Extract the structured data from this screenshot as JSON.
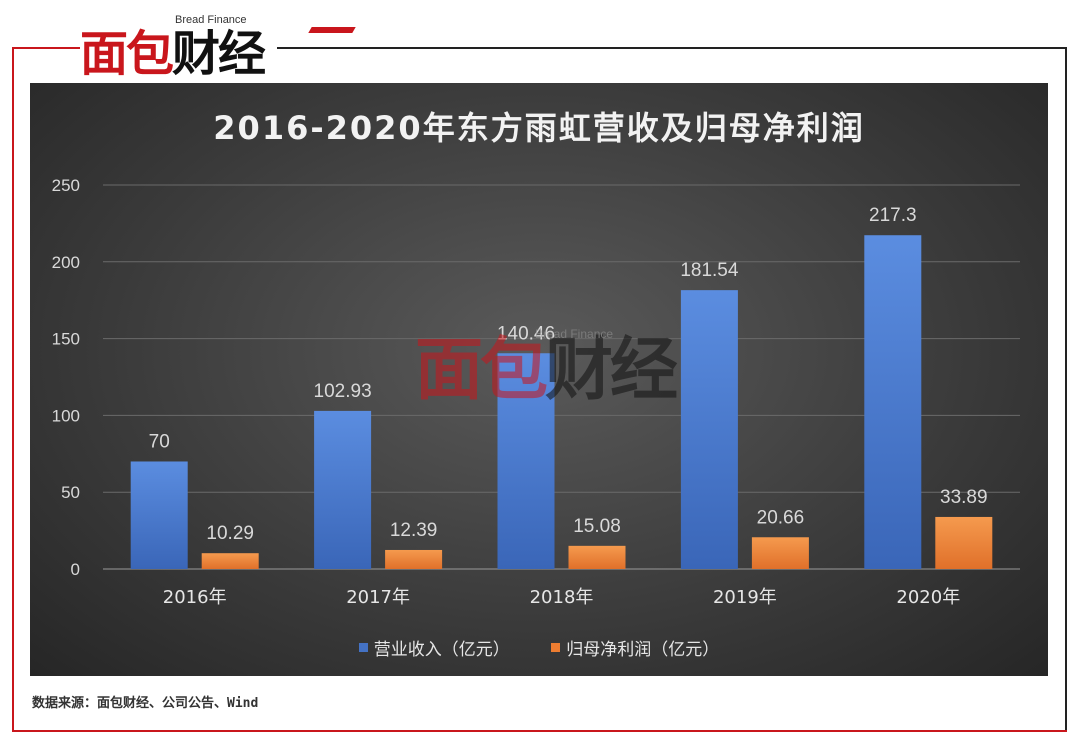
{
  "logo": {
    "en": "Bread Finance",
    "cn_red": "面包",
    "cn_black": "财经"
  },
  "source": "数据来源：面包财经、公司公告、Wind",
  "colors": {
    "revenue": "#4472c4",
    "profit": "#ed7d31",
    "panel": "#3a3a3a",
    "accent": "#c9161c"
  },
  "chart_data": {
    "type": "bar",
    "title": "2016-2020年东方雨虹营收及归母净利润",
    "categories": [
      "2016年",
      "2017年",
      "2018年",
      "2019年",
      "2020年"
    ],
    "series": [
      {
        "name": "营业收入（亿元）",
        "values": [
          70,
          102.93,
          140.46,
          181.54,
          217.3
        ],
        "labels": [
          "70",
          "102.93",
          "140.46",
          "181.54",
          "217.3"
        ]
      },
      {
        "name": "归母净利润（亿元）",
        "values": [
          10.29,
          12.39,
          15.08,
          20.66,
          33.89
        ],
        "labels": [
          "10.29",
          "12.39",
          "15.08",
          "20.66",
          "33.89"
        ]
      }
    ],
    "ylim": [
      0,
      250
    ],
    "yticks": [
      0,
      50,
      100,
      150,
      200,
      250
    ],
    "grid": true,
    "legend": "bottom"
  }
}
